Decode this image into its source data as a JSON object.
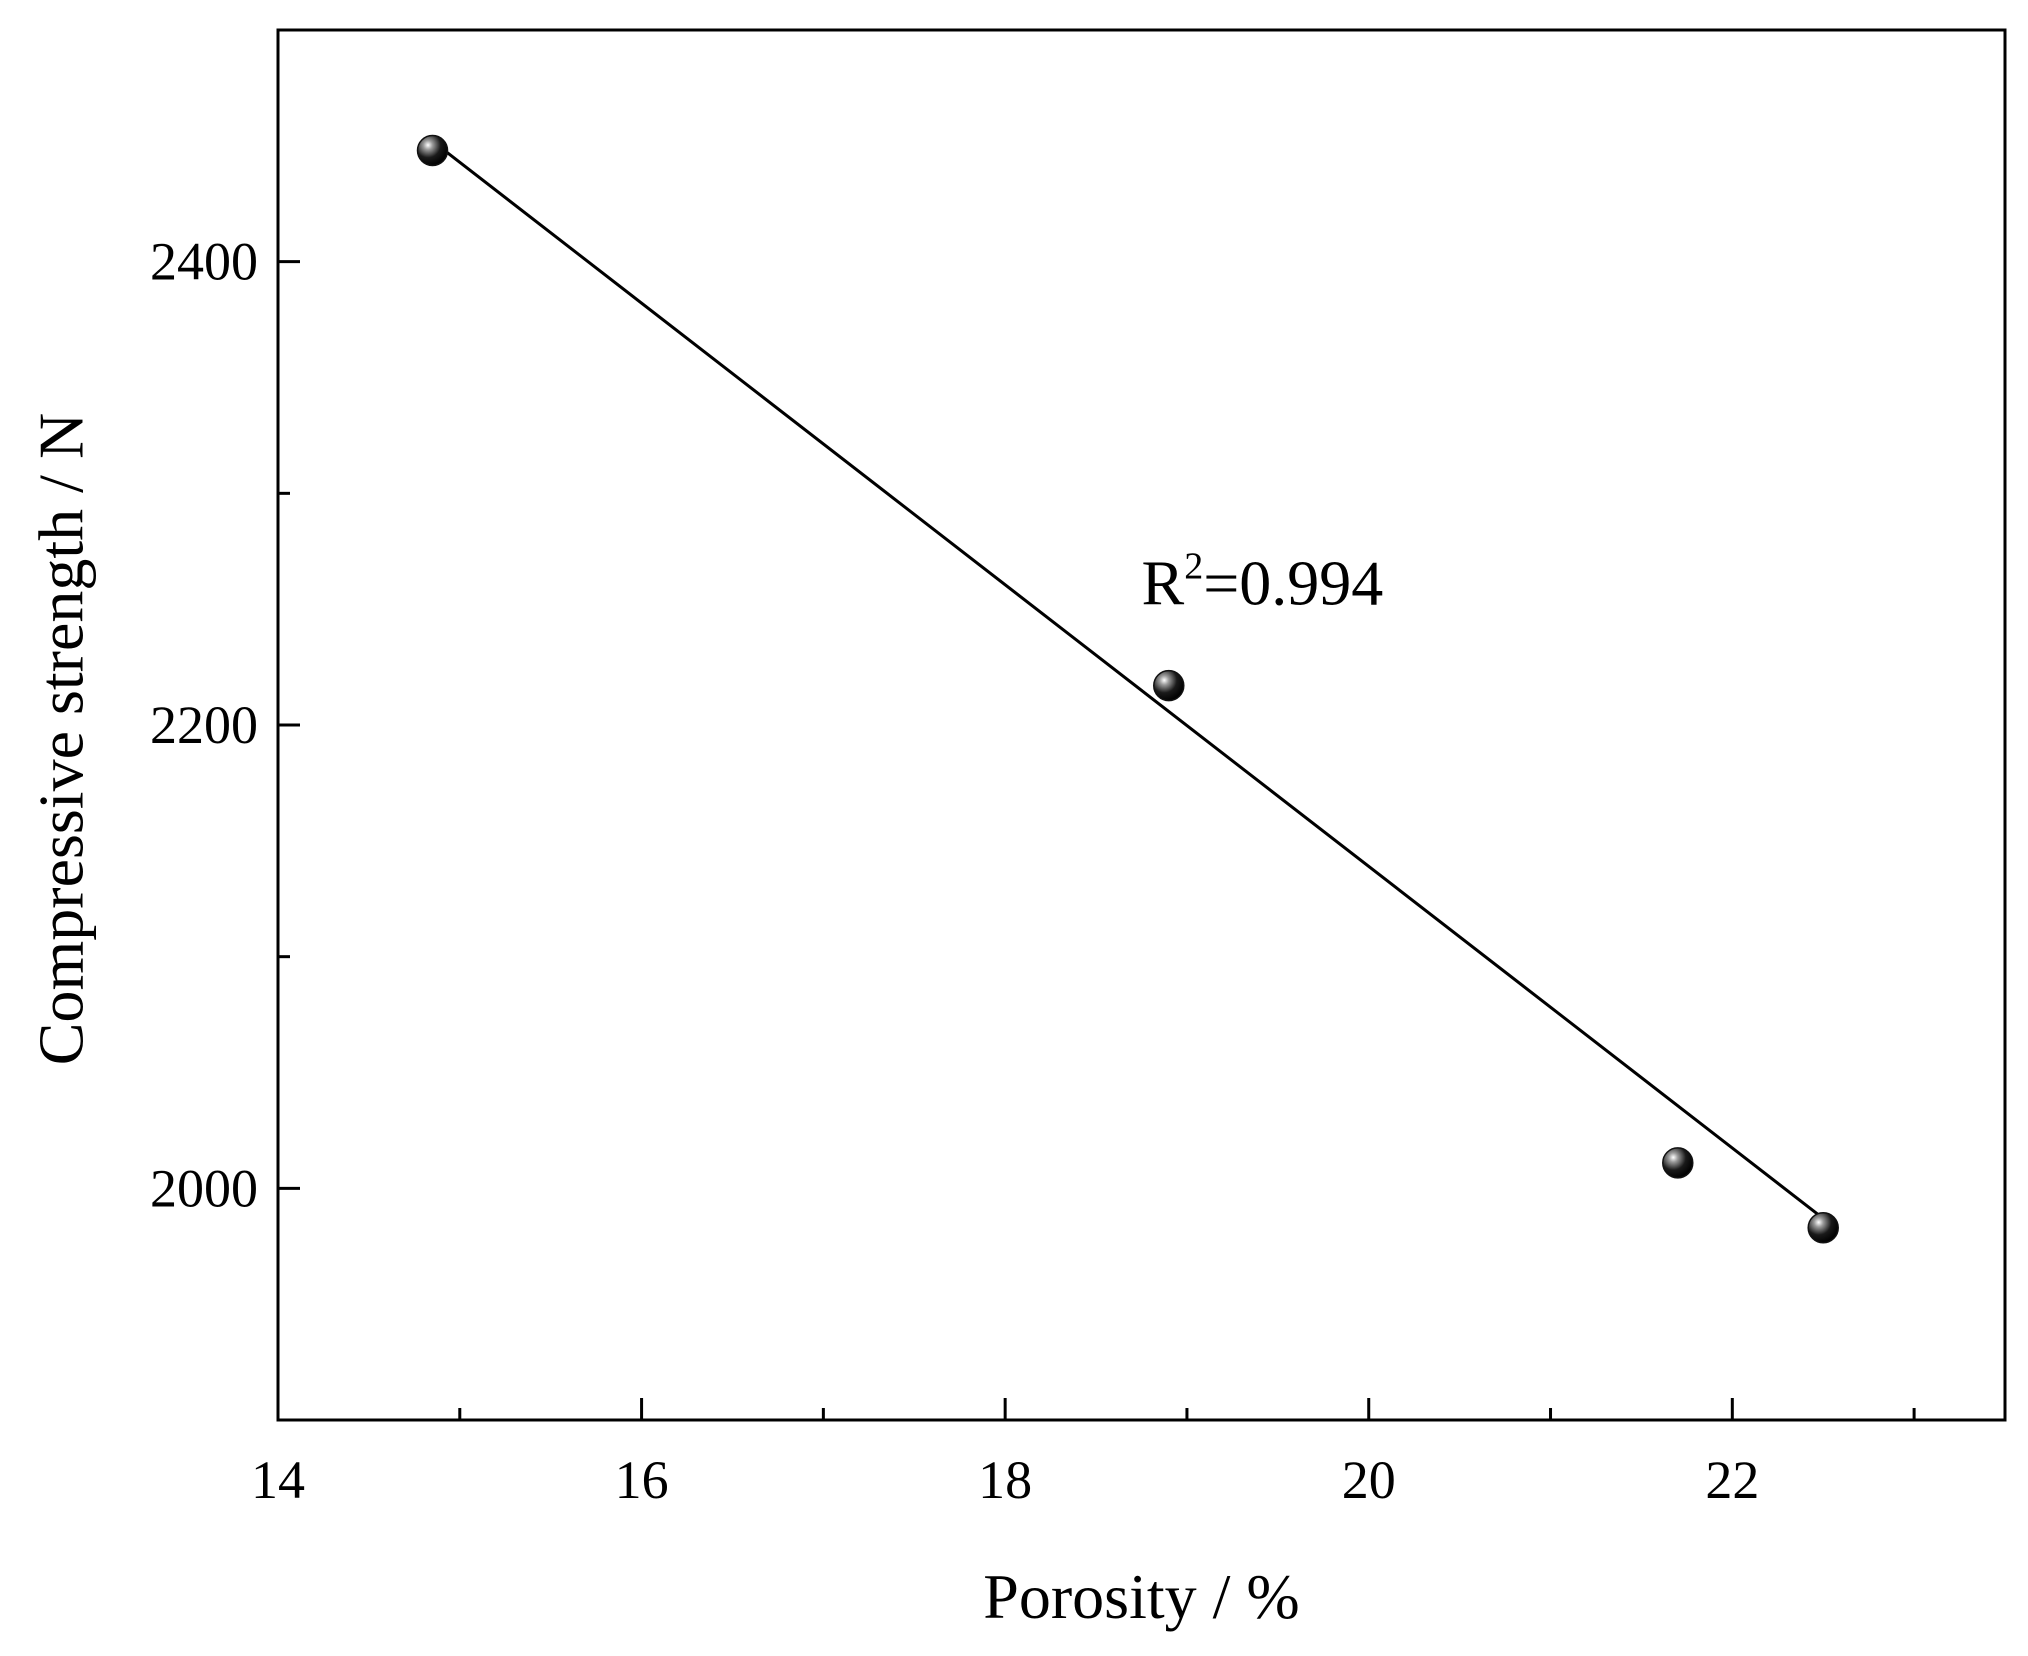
{
  "chart_data": {
    "type": "scatter",
    "title": "",
    "xlabel": "Porosity / %",
    "ylabel": "Compressive strength / N",
    "xlim": [
      14,
      23.5
    ],
    "ylim": [
      1900,
      2500
    ],
    "x_major_ticks": [
      14,
      16,
      18,
      20,
      22
    ],
    "x_minor_ticks": [
      15,
      17,
      19,
      21,
      23
    ],
    "y_major_ticks": [
      2000,
      2200,
      2400
    ],
    "y_minor_ticks": [
      2100,
      2300
    ],
    "x_tick_labels": [
      "14",
      "16",
      "18",
      "20",
      "22"
    ],
    "y_tick_labels": [
      "2000",
      "2200",
      "2400"
    ],
    "grid": false,
    "series": [
      {
        "points": [
          {
            "x": 14.85,
            "y": 2448
          },
          {
            "x": 18.9,
            "y": 2217
          },
          {
            "x": 21.7,
            "y": 2011
          },
          {
            "x": 22.5,
            "y": 1983
          }
        ],
        "marker_color": "#111111"
      }
    ],
    "fit_line": {
      "x": [
        14.85,
        22.5
      ],
      "y": [
        2452,
        1987
      ],
      "color": "#000000"
    },
    "annotation": {
      "base": "R",
      "superscript": "2",
      "rest": "=0.994",
      "x": 18.75,
      "y": 2252
    }
  }
}
